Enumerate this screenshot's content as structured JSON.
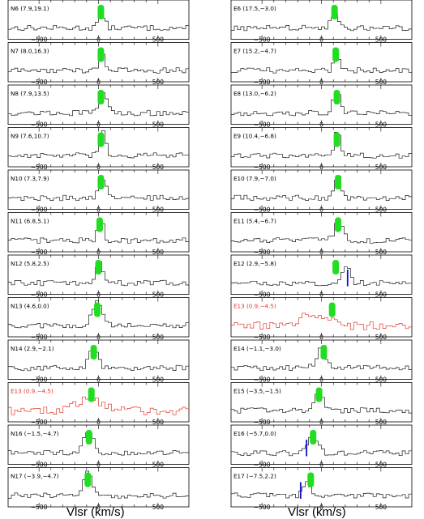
{
  "figure": {
    "left_xlabel": "Vlsr (km/s)",
    "right_xlabel": "Vlsr (km/s)",
    "tick_labels": [
      "−500",
      "0",
      "500"
    ],
    "colors": {
      "spectrum": "#1a1a1a",
      "highlight_spectrum": "#e0382c",
      "marker": "#22dd22",
      "velocity_line": "#1010cc",
      "axes": "#000000"
    }
  },
  "chart_data": [
    {
      "type": "line",
      "column": "left",
      "label": "N6 (7.9,19.1)",
      "highlight": false,
      "marker_v": 20,
      "peak_v": 25,
      "peak_amp": 0.55,
      "width": 28,
      "blue_line_v": null
    },
    {
      "type": "line",
      "column": "left",
      "label": "N7 (8.0,16.3)",
      "highlight": false,
      "marker_v": 20,
      "peak_v": 28,
      "peak_amp": 0.7,
      "width": 26,
      "blue_line_v": null
    },
    {
      "type": "line",
      "column": "left",
      "label": "N8 (7.9,13.5)",
      "highlight": false,
      "marker_v": 20,
      "peak_v": 40,
      "peak_amp": 0.9,
      "width": 30,
      "blue_line_v": null
    },
    {
      "type": "line",
      "column": "left",
      "label": "N9 (7.6,10.7)",
      "highlight": false,
      "marker_v": 20,
      "peak_v": 40,
      "peak_amp": 1.0,
      "width": 22,
      "blue_line_v": null
    },
    {
      "type": "line",
      "column": "left",
      "label": "N10 (7.3,7.9)",
      "highlight": false,
      "marker_v": 20,
      "peak_v": 30,
      "peak_amp": 0.85,
      "width": 30,
      "blue_line_v": null
    },
    {
      "type": "line",
      "column": "left",
      "label": "N11 (6.8,5.1)",
      "highlight": false,
      "marker_v": 10,
      "peak_v": 20,
      "peak_amp": 1.0,
      "width": 22,
      "blue_line_v": null
    },
    {
      "type": "line",
      "column": "left",
      "label": "N12 (5.8,2.5)",
      "highlight": false,
      "marker_v": 0,
      "peak_v": 10,
      "peak_amp": 0.9,
      "width": 30,
      "blue_line_v": null
    },
    {
      "type": "line",
      "column": "left",
      "label": "N13 (4.6,0.0)",
      "highlight": false,
      "marker_v": -10,
      "peak_v": -10,
      "peak_amp": 0.95,
      "width": 40,
      "blue_line_v": null
    },
    {
      "type": "line",
      "column": "left",
      "label": "N14 (2.9,−2.1)",
      "highlight": false,
      "marker_v": -40,
      "peak_v": -40,
      "peak_amp": 0.9,
      "width": 35,
      "blue_line_v": null
    },
    {
      "type": "line",
      "column": "left",
      "label": "E13 (0.9,−4.5)",
      "highlight": true,
      "marker_v": -60,
      "peak_v": -60,
      "peak_amp": 0.45,
      "width": 110,
      "blue_line_v": null
    },
    {
      "type": "line",
      "column": "left",
      "label": "N16 (−1.5,−4.7)",
      "highlight": false,
      "marker_v": -80,
      "peak_v": -80,
      "peak_amp": 0.95,
      "width": 40,
      "blue_line_v": null
    },
    {
      "type": "line",
      "column": "left",
      "label": "N17 (−3.9,−4.7)",
      "highlight": false,
      "marker_v": -90,
      "peak_v": -90,
      "peak_amp": 0.9,
      "width": 35,
      "blue_line_v": null
    },
    {
      "type": "line",
      "column": "right",
      "label": "E6 (17.5,−3.0)",
      "highlight": false,
      "marker_v": 110,
      "peak_v": 110,
      "peak_amp": 0.6,
      "width": 30,
      "blue_line_v": null
    },
    {
      "type": "line",
      "column": "right",
      "label": "E7 (15.2,−4.7)",
      "highlight": false,
      "marker_v": 120,
      "peak_v": 125,
      "peak_amp": 0.8,
      "width": 22,
      "blue_line_v": null
    },
    {
      "type": "line",
      "column": "right",
      "label": "E8 (13.0,−6.2)",
      "highlight": false,
      "marker_v": 130,
      "peak_v": 130,
      "peak_amp": 0.9,
      "width": 30,
      "blue_line_v": null
    },
    {
      "type": "line",
      "column": "right",
      "label": "E9 (10.4,−6.8)",
      "highlight": false,
      "marker_v": 130,
      "peak_v": 135,
      "peak_amp": 0.95,
      "width": 25,
      "blue_line_v": null
    },
    {
      "type": "line",
      "column": "right",
      "label": "E10 (7.9,−7.0)",
      "highlight": false,
      "marker_v": 140,
      "peak_v": 140,
      "peak_amp": 0.9,
      "width": 28,
      "blue_line_v": null
    },
    {
      "type": "line",
      "column": "right",
      "label": "E11 (5.4,−6.7)",
      "highlight": false,
      "marker_v": 140,
      "peak_v": 145,
      "peak_amp": 0.75,
      "width": 35,
      "blue_line_v": null
    },
    {
      "type": "line",
      "column": "right",
      "label": "E12 (2.9,−5.8)",
      "highlight": false,
      "marker_v": 120,
      "peak_v": 210,
      "peak_amp": 0.75,
      "width": 30,
      "blue_line_v": 220
    },
    {
      "type": "line",
      "column": "right",
      "label": "E13 (0.9,−4.5)",
      "highlight": true,
      "marker_v": 90,
      "peak_v": -60,
      "peak_amp": 0.45,
      "width": 110,
      "blue_line_v": null
    },
    {
      "type": "line",
      "column": "right",
      "label": "E14 (−1.1,−3.0)",
      "highlight": false,
      "marker_v": 20,
      "peak_v": 0,
      "peak_amp": 0.75,
      "width": 40,
      "blue_line_v": null
    },
    {
      "type": "line",
      "column": "right",
      "label": "E15 (−3.5,−1.5)",
      "highlight": false,
      "marker_v": -20,
      "peak_v": -20,
      "peak_amp": 0.9,
      "width": 30,
      "blue_line_v": null
    },
    {
      "type": "line",
      "column": "right",
      "label": "E16 (−5.7,0.0)",
      "highlight": false,
      "marker_v": -70,
      "peak_v": -75,
      "peak_amp": 0.75,
      "width": 40,
      "blue_line_v": -125
    },
    {
      "type": "line",
      "column": "right",
      "label": "E17 (−7.5,2.2)",
      "highlight": false,
      "marker_v": -90,
      "peak_v": -120,
      "peak_amp": 0.65,
      "width": 30,
      "blue_line_v": -175
    }
  ]
}
